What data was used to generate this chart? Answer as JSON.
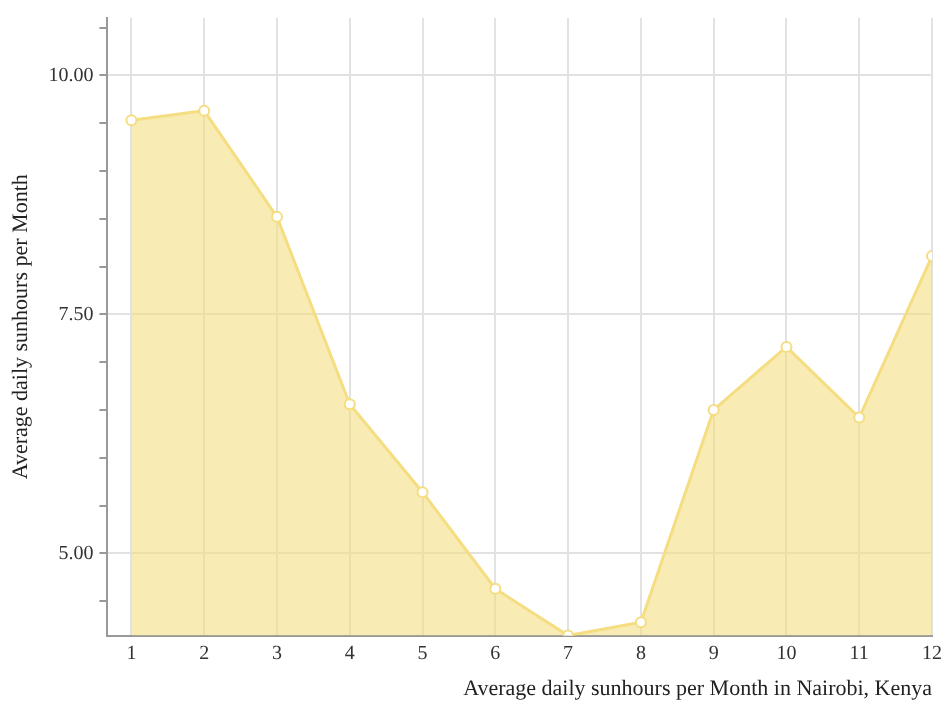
{
  "chart_data": {
    "type": "area",
    "xlabel": "Average daily sunhours per Month in Nairobi, Kenya",
    "ylabel": "Average daily sunhours per Month",
    "x": [
      1,
      2,
      3,
      4,
      5,
      6,
      7,
      8,
      9,
      10,
      11,
      12
    ],
    "series": [
      {
        "color": "#f5dd82",
        "values": [
          9.53,
          9.63,
          8.52,
          6.56,
          5.64,
          4.63,
          4.14,
          4.28,
          6.5,
          7.16,
          6.42,
          8.11
        ]
      }
    ],
    "xlim": [
      0.67,
      12
    ],
    "xticks": [
      1,
      2,
      3,
      4,
      5,
      6,
      7,
      8,
      9,
      10,
      11,
      12
    ],
    "ylim": [
      4.14,
      10.6
    ],
    "yticks": [
      {
        "value": 4.5,
        "label": null
      },
      {
        "value": 5,
        "label": "5.00"
      },
      {
        "value": 5.5,
        "label": null
      },
      {
        "value": 6,
        "label": null
      },
      {
        "value": 6.5,
        "label": null
      },
      {
        "value": 7,
        "label": null
      },
      {
        "value": 7.5,
        "label": "7.50"
      },
      {
        "value": 8,
        "label": null
      },
      {
        "value": 8.5,
        "label": null
      },
      {
        "value": 9,
        "label": null
      },
      {
        "value": 9.5,
        "label": null
      },
      {
        "value": 10,
        "label": "10.00"
      },
      {
        "value": 10.5,
        "label": null
      }
    ],
    "grid": true,
    "marker": "circle",
    "legend": false
  }
}
